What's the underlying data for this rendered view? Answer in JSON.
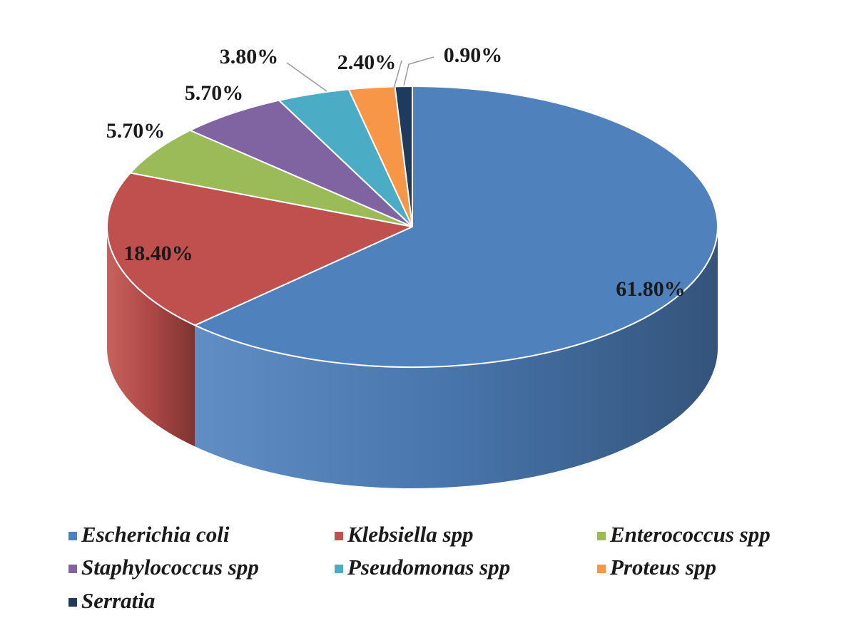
{
  "chart_data": {
    "type": "pie",
    "style": "3d",
    "legend_position": "bottom",
    "categories": [
      "Escherichia coli",
      "Klebsiella spp",
      "Enterococcus spp",
      "Staphylococcus spp",
      "Pseudomonas spp",
      "Proteus spp",
      "Serratia"
    ],
    "values": [
      61.8,
      18.4,
      5.7,
      5.7,
      3.8,
      2.4,
      0.9
    ],
    "data_labels": [
      "61.80%",
      "18.40%",
      "5.70%",
      "5.70%",
      "3.80%",
      "2.40%",
      "0.90%"
    ],
    "colors": [
      "#4F81BD",
      "#C0504D",
      "#9BBB59",
      "#8064A2",
      "#4BACC6",
      "#F79646",
      "#1F3A5F"
    ]
  }
}
